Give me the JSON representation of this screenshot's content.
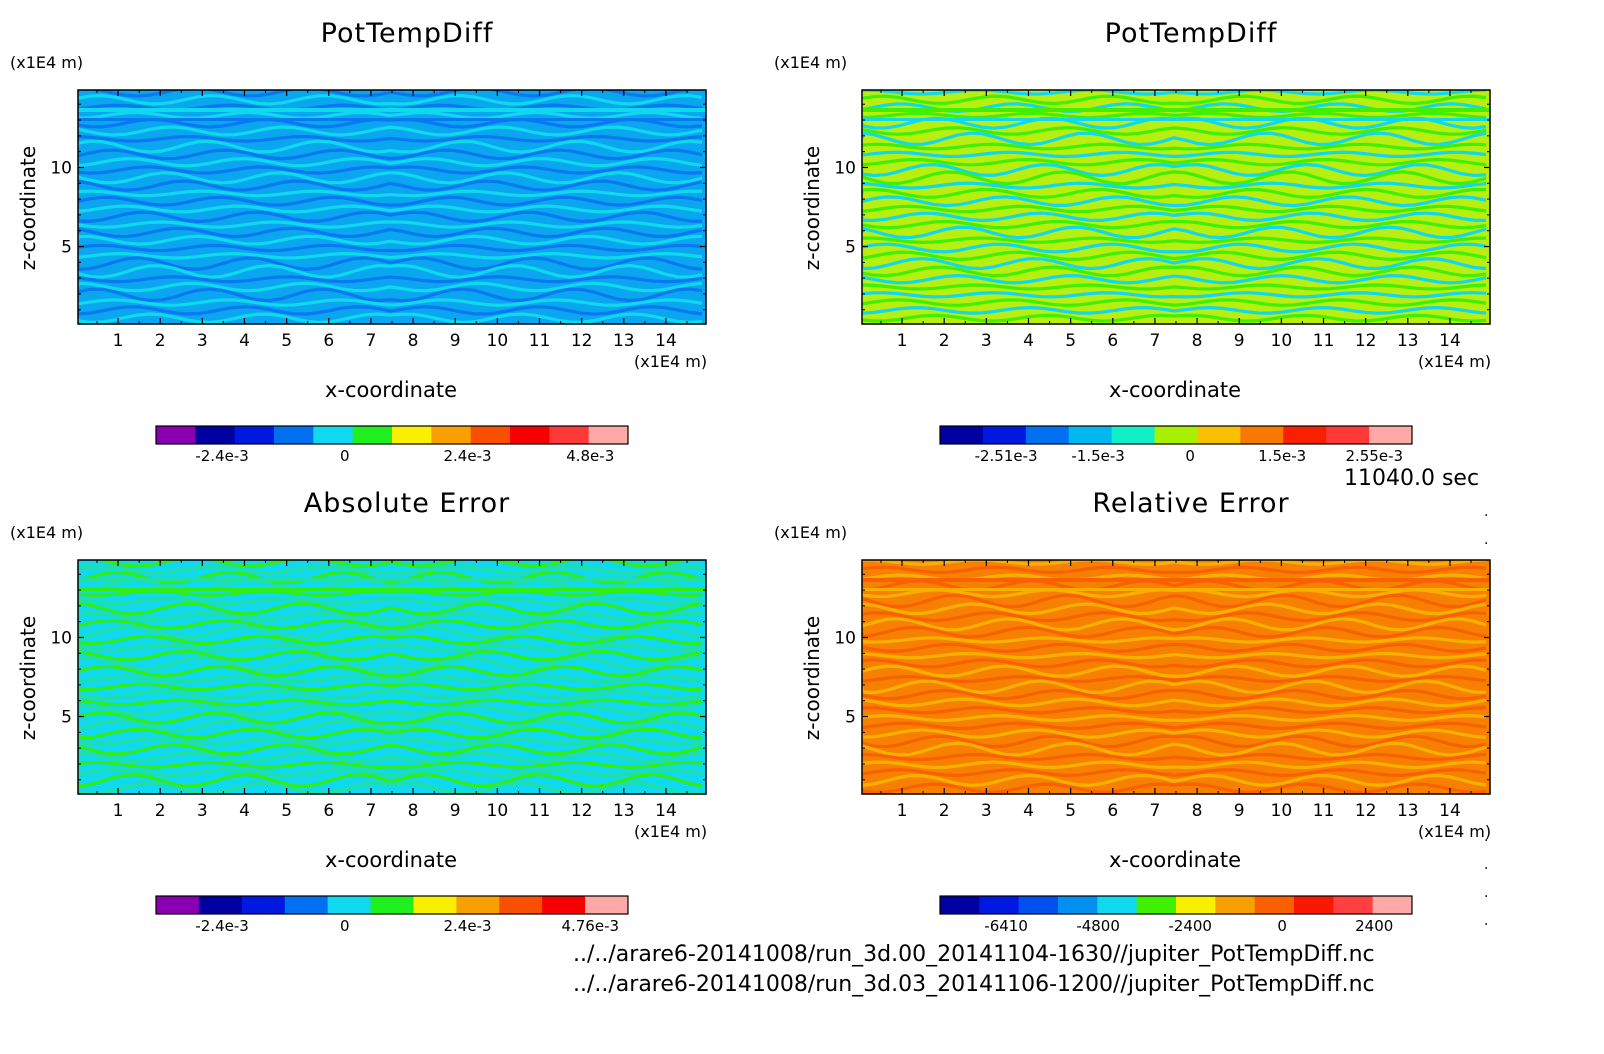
{
  "time_label": "11040.0 sec",
  "files": [
    "../../arare6-20141008/run_3d.00_20141104-1630//jupiter_PotTempDiff.nc",
    "../../arare6-20141008/run_3d.03_20141106-1200//jupiter_PotTempDiff.nc"
  ],
  "chart_data": [
    {
      "type": "heatmap",
      "title": "PotTempDiff",
      "xlabel": "x-coordinate",
      "ylabel": "z-coordinate",
      "x_unit": "(x1E4 m)",
      "y_unit": "(x1E4 m)",
      "xlim": [
        0.05,
        14.95
      ],
      "ylim": [
        0.1,
        14.9
      ],
      "x_ticks": [
        "1",
        "2",
        "3",
        "4",
        "5",
        "6",
        "7",
        "8",
        "9",
        "10",
        "11",
        "12",
        "13",
        "14"
      ],
      "y_ticks": [
        "5",
        "10"
      ],
      "pattern_colors": [
        "#0aa6f0",
        "#0a78f0",
        "#10d8ee"
      ],
      "colorbar": {
        "colors": [
          "#8a00b0",
          "#0000a0",
          "#0018e0",
          "#0070f0",
          "#10d8ee",
          "#20f020",
          "#f8f000",
          "#f8a000",
          "#f85000",
          "#f80000",
          "#ff3838",
          "#ffa8a8"
        ],
        "labels": [
          "-2.4e-3",
          "0",
          "2.4e-3",
          "4.8e-3"
        ]
      }
    },
    {
      "type": "heatmap",
      "title": "PotTempDiff",
      "xlabel": "x-coordinate",
      "ylabel": "z-coordinate",
      "x_unit": "(x1E4 m)",
      "y_unit": "(x1E4 m)",
      "xlim": [
        0.05,
        14.95
      ],
      "ylim": [
        0.1,
        14.9
      ],
      "x_ticks": [
        "1",
        "2",
        "3",
        "4",
        "5",
        "6",
        "7",
        "8",
        "9",
        "10",
        "11",
        "12",
        "13",
        "14"
      ],
      "y_ticks": [
        "5",
        "10"
      ],
      "pattern_colors": [
        "#b8ee10",
        "#10d8ee",
        "#40f000"
      ],
      "colorbar": {
        "colors": [
          "#0000a0",
          "#0018e0",
          "#0070f0",
          "#00b8f0",
          "#10f0c8",
          "#a8f000",
          "#f8c000",
          "#f87800",
          "#f82000",
          "#ff3838",
          "#ffa8a8"
        ],
        "labels": [
          "-2.51e-3",
          "-1.5e-3",
          "0",
          "1.5e-3",
          "2.55e-3"
        ]
      }
    },
    {
      "type": "heatmap",
      "title": "Absolute Error",
      "xlabel": "x-coordinate",
      "ylabel": "z-coordinate",
      "x_unit": "(x1E4 m)",
      "y_unit": "(x1E4 m)",
      "xlim": [
        0.05,
        14.95
      ],
      "ylim": [
        0.1,
        14.9
      ],
      "x_ticks": [
        "1",
        "2",
        "3",
        "4",
        "5",
        "6",
        "7",
        "8",
        "9",
        "10",
        "11",
        "12",
        "13",
        "14"
      ],
      "y_ticks": [
        "5",
        "10"
      ],
      "pattern_colors": [
        "#10d8ee",
        "#30ee10",
        "#20e0a0"
      ],
      "colorbar": {
        "colors": [
          "#8a00b0",
          "#0000a0",
          "#0018e0",
          "#0070f0",
          "#10d8ee",
          "#20f020",
          "#f8f000",
          "#f8a000",
          "#f85000",
          "#f80000",
          "#ffa8a8"
        ],
        "labels": [
          "-2.4e-3",
          "0",
          "2.4e-3",
          "4.76e-3"
        ]
      }
    },
    {
      "type": "heatmap",
      "title": "Relative Error",
      "xlabel": "x-coordinate",
      "ylabel": "z-coordinate",
      "x_unit": "(x1E4 m)",
      "y_unit": "(x1E4 m)",
      "xlim": [
        0.05,
        14.95
      ],
      "ylim": [
        0.1,
        14.9
      ],
      "x_ticks": [
        "1",
        "2",
        "3",
        "4",
        "5",
        "6",
        "7",
        "8",
        "9",
        "10",
        "11",
        "12",
        "13",
        "14"
      ],
      "y_ticks": [
        "5",
        "10"
      ],
      "pattern_colors": [
        "#f88000",
        "#f8b000",
        "#f86000"
      ],
      "colorbar": {
        "colors": [
          "#0000a0",
          "#0018e0",
          "#0050f0",
          "#0090f0",
          "#10d8ee",
          "#40f000",
          "#f8f000",
          "#f8a000",
          "#f86000",
          "#f81800",
          "#ff4040",
          "#ffa8a8"
        ],
        "labels": [
          "-6410",
          "-4800",
          "-2400",
          "0",
          "2400"
        ]
      }
    }
  ]
}
